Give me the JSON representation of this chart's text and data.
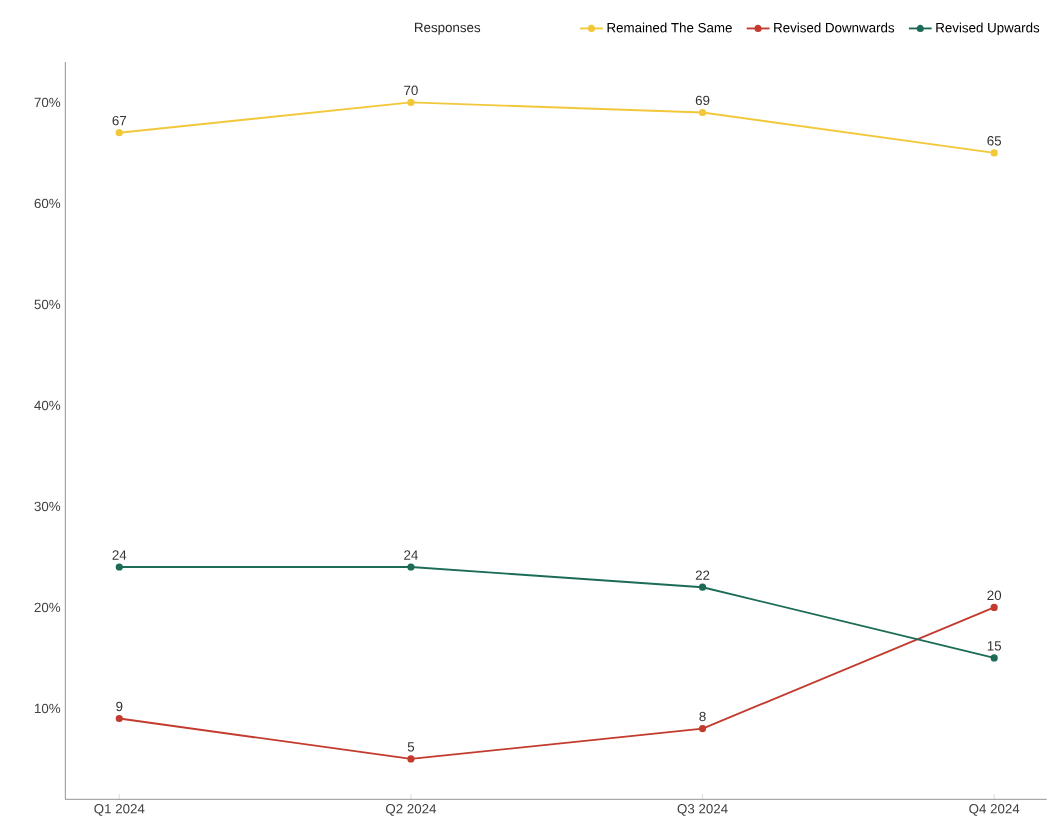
{
  "chart_data": {
    "type": "line",
    "categories": [
      "Q1 2024",
      "Q2 2024",
      "Q3 2024",
      "Q4 2024"
    ],
    "series": [
      {
        "name": "Remained The Same",
        "color": "#f2c83a",
        "values": [
          67,
          70,
          69,
          65
        ]
      },
      {
        "name": "Revised Downwards",
        "color": "#c33b2e",
        "values": [
          9,
          5,
          8,
          20
        ]
      },
      {
        "name": "Revised Upwards",
        "color": "#1c6b57",
        "values": [
          24,
          24,
          22,
          15
        ]
      }
    ],
    "ylim": [
      1,
      74
    ],
    "yticks": [
      {
        "value": 10,
        "label": "10%"
      },
      {
        "value": 20,
        "label": "20%"
      },
      {
        "value": 30,
        "label": "30%"
      },
      {
        "value": 40,
        "label": "40%"
      },
      {
        "value": 50,
        "label": "50%"
      },
      {
        "value": 60,
        "label": "60%"
      },
      {
        "value": 70,
        "label": "70%"
      }
    ],
    "legend_title": "Responses",
    "legend": "top right",
    "marker": "circle",
    "line_style": "solid",
    "data_labels": true,
    "grid": false
  }
}
